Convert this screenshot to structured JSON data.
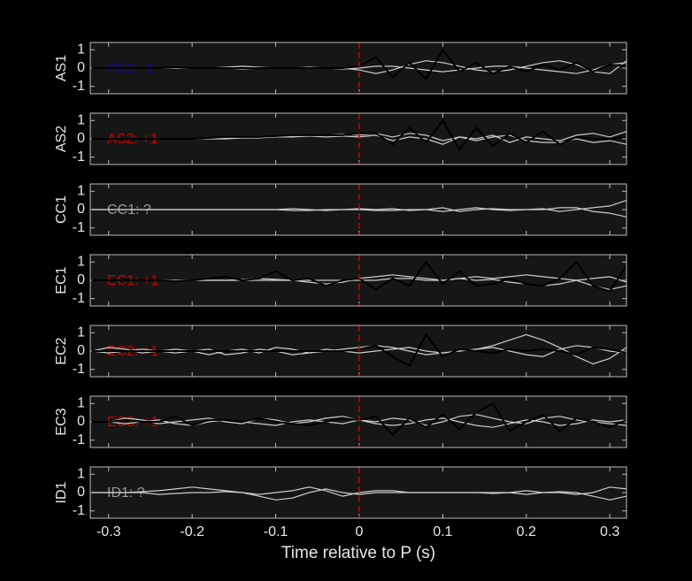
{
  "chart_data": [
    {
      "type": "line",
      "ylabel": "AS1",
      "annotation": {
        "text": "AS1: -1",
        "color": "#0a0a9a"
      },
      "vline": {
        "x": 0,
        "color": "#cc0000"
      },
      "xlim": [
        -0.322,
        0.32
      ],
      "ylim": [
        -1.4,
        1.4
      ],
      "yticks": [
        -1,
        0,
        1
      ],
      "x": [
        -0.32,
        -0.3,
        -0.28,
        -0.26,
        -0.24,
        -0.22,
        -0.2,
        -0.18,
        -0.16,
        -0.14,
        -0.12,
        -0.1,
        -0.08,
        -0.06,
        -0.04,
        -0.02,
        0,
        0.02,
        0.04,
        0.06,
        0.08,
        0.1,
        0.12,
        0.14,
        0.16,
        0.18,
        0.2,
        0.22,
        0.24,
        0.26,
        0.28,
        0.3,
        0.32
      ],
      "series": [
        {
          "color": "#cccccc",
          "values": [
            0,
            0,
            0,
            0,
            0,
            0,
            0,
            0,
            0.05,
            0.1,
            0.05,
            0,
            0,
            0,
            0,
            0,
            -0.1,
            -0.3,
            -0.1,
            0.2,
            0.4,
            0.3,
            0.1,
            -0.1,
            -0.2,
            -0.1,
            0.1,
            0.3,
            0.4,
            0.2,
            -0.2,
            -0.3,
            0.4
          ]
        },
        {
          "color": "#cccccc",
          "values": [
            0,
            0,
            0,
            0,
            0,
            0,
            0,
            0,
            0,
            -0.05,
            0,
            0,
            0,
            0.05,
            0,
            -0.05,
            0,
            0.1,
            0.1,
            0,
            -0.1,
            -0.2,
            -0.1,
            0,
            0.1,
            0.1,
            0,
            -0.1,
            -0.2,
            -0.3,
            -0.1,
            0.2,
            0.3
          ]
        },
        {
          "color": "#000000",
          "values": [
            0,
            0,
            0,
            0,
            0,
            0.05,
            0,
            0,
            0,
            0,
            0,
            0,
            0,
            0,
            0,
            0,
            0.1,
            0.6,
            -0.5,
            0.3,
            -0.6,
            1.0,
            -0.2,
            0.3,
            -0.3,
            0.1,
            -0.2,
            0.2,
            -0.1,
            0.3,
            -0.2,
            0.2,
            0.1
          ]
        }
      ]
    },
    {
      "type": "line",
      "ylabel": "AS2",
      "annotation": {
        "text": "AS2: +1",
        "color": "#cc0000"
      },
      "vline": {
        "x": 0,
        "color": "#cc0000"
      },
      "xlim": [
        -0.322,
        0.32
      ],
      "ylim": [
        -1.4,
        1.4
      ],
      "yticks": [
        -1,
        0,
        1
      ],
      "x": [
        -0.32,
        -0.3,
        -0.28,
        -0.26,
        -0.24,
        -0.22,
        -0.2,
        -0.18,
        -0.16,
        -0.14,
        -0.12,
        -0.1,
        -0.08,
        -0.06,
        -0.04,
        -0.02,
        0,
        0.02,
        0.04,
        0.06,
        0.08,
        0.1,
        0.12,
        0.14,
        0.16,
        0.18,
        0.2,
        0.22,
        0.24,
        0.26,
        0.28,
        0.3,
        0.32
      ],
      "series": [
        {
          "color": "#cccccc",
          "values": [
            0,
            0,
            0,
            0,
            0,
            0,
            0,
            0,
            0.05,
            0.1,
            0.1,
            0.1,
            0.15,
            0.2,
            0.2,
            0.25,
            0.2,
            0.3,
            0.1,
            0.3,
            0.2,
            -0.1,
            0.1,
            0,
            0.2,
            -0.2,
            0.1,
            0,
            -0.1,
            0.2,
            0.3,
            0.1,
            0.4
          ]
        },
        {
          "color": "#cccccc",
          "values": [
            0,
            0,
            0,
            0,
            0,
            0,
            0,
            0,
            0,
            0.05,
            0.05,
            0.1,
            0.1,
            0.15,
            0.1,
            0.15,
            0.1,
            0.2,
            -0.1,
            0.1,
            0,
            -0.3,
            0.1,
            -0.1,
            0.1,
            0.2,
            -0.1,
            -0.2,
            -0.2,
            0,
            -0.2,
            -0.1,
            -0.3
          ]
        },
        {
          "color": "#000000",
          "values": [
            0,
            0,
            0,
            0,
            0,
            0,
            0,
            0.05,
            0.1,
            0.1,
            0.1,
            0.15,
            0.2,
            0.2,
            0.2,
            0.2,
            0.3,
            0.3,
            -0.3,
            0.6,
            -0.2,
            1.0,
            -0.6,
            0.6,
            -0.4,
            0.3,
            -0.2,
            0.4,
            -0.3,
            0.1,
            0,
            0,
            0.1
          ]
        }
      ]
    },
    {
      "type": "line",
      "ylabel": "CC1",
      "annotation": {
        "text": "CC1: ?",
        "color": "#999999"
      },
      "vline": {
        "x": 0,
        "color": "#cc0000"
      },
      "xlim": [
        -0.322,
        0.32
      ],
      "ylim": [
        -1.4,
        1.4
      ],
      "yticks": [
        -1,
        0,
        1
      ],
      "x": [
        -0.32,
        -0.3,
        -0.28,
        -0.26,
        -0.24,
        -0.22,
        -0.2,
        -0.18,
        -0.16,
        -0.14,
        -0.12,
        -0.1,
        -0.08,
        -0.06,
        -0.04,
        -0.02,
        0,
        0.02,
        0.04,
        0.06,
        0.08,
        0.1,
        0.12,
        0.14,
        0.16,
        0.18,
        0.2,
        0.22,
        0.24,
        0.26,
        0.28,
        0.3,
        0.32
      ],
      "series": [
        {
          "color": "#cccccc",
          "values": [
            0,
            0,
            0,
            0,
            0,
            0,
            0,
            0,
            0,
            0,
            0,
            0,
            0.05,
            0,
            -0.05,
            0,
            0.05,
            0,
            0.05,
            -0.05,
            0,
            0.1,
            -0.1,
            0,
            0.05,
            0,
            0,
            0.05,
            -0.1,
            0,
            0.1,
            0.2,
            0.5
          ]
        },
        {
          "color": "#cccccc",
          "values": [
            0,
            0,
            0,
            0,
            0,
            0,
            0,
            0,
            0,
            0,
            0,
            0,
            -0.05,
            -0.05,
            0,
            0,
            0,
            -0.05,
            -0.05,
            0,
            0,
            -0.1,
            0,
            0.1,
            0,
            -0.05,
            0,
            0,
            0.1,
            0.1,
            -0.1,
            -0.2,
            -0.4
          ]
        }
      ]
    },
    {
      "type": "line",
      "ylabel": "EC1",
      "annotation": {
        "text": "EC1: +1",
        "color": "#cc0000"
      },
      "vline": {
        "x": 0,
        "color": "#cc0000"
      },
      "xlim": [
        -0.322,
        0.32
      ],
      "ylim": [
        -1.4,
        1.4
      ],
      "yticks": [
        -1,
        0,
        1
      ],
      "x": [
        -0.32,
        -0.3,
        -0.28,
        -0.26,
        -0.24,
        -0.22,
        -0.2,
        -0.18,
        -0.16,
        -0.14,
        -0.12,
        -0.1,
        -0.08,
        -0.06,
        -0.04,
        -0.02,
        0,
        0.02,
        0.04,
        0.06,
        0.08,
        0.1,
        0.12,
        0.14,
        0.16,
        0.18,
        0.2,
        0.22,
        0.24,
        0.26,
        0.28,
        0.3,
        0.32
      ],
      "series": [
        {
          "color": "#cccccc",
          "values": [
            0,
            0,
            0,
            0,
            0,
            0,
            0,
            0,
            0,
            0.05,
            0.1,
            0.05,
            0,
            -0.1,
            -0.2,
            -0.1,
            0.1,
            0.2,
            0.3,
            0.2,
            0.1,
            0,
            0.1,
            0.2,
            0.1,
            0.2,
            0.3,
            0.2,
            0.1,
            0,
            -0.3,
            -0.5,
            -0.3
          ]
        },
        {
          "color": "#cccccc",
          "values": [
            0,
            0,
            0,
            0,
            0,
            0,
            0,
            0,
            0,
            0,
            0,
            0,
            0,
            0,
            0,
            0,
            0,
            0,
            0.1,
            0.1,
            0,
            0,
            0.1,
            0,
            0.05,
            -0.1,
            -0.2,
            -0.3,
            -0.2,
            0,
            0.1,
            0.2,
            -0.1
          ]
        },
        {
          "color": "#000000",
          "values": [
            0,
            0,
            0,
            0,
            0,
            -0.05,
            0,
            0.1,
            0.2,
            0,
            0.1,
            0.5,
            0,
            0.1,
            -0.3,
            0,
            0.1,
            -0.5,
            0.1,
            -0.3,
            1.0,
            -0.2,
            0.5,
            -0.3,
            -0.2,
            0.1,
            -0.2,
            -0.3,
            0.1,
            1.0,
            -0.3,
            -0.6,
            0.8
          ]
        }
      ]
    },
    {
      "type": "line",
      "ylabel": "EC2",
      "annotation": {
        "text": "EC2: +1",
        "color": "#cc0000"
      },
      "vline": {
        "x": 0,
        "color": "#cc0000"
      },
      "xlim": [
        -0.322,
        0.32
      ],
      "ylim": [
        -1.4,
        1.4
      ],
      "yticks": [
        -1,
        0,
        1
      ],
      "x": [
        -0.32,
        -0.3,
        -0.28,
        -0.26,
        -0.24,
        -0.22,
        -0.2,
        -0.18,
        -0.16,
        -0.14,
        -0.12,
        -0.1,
        -0.08,
        -0.06,
        -0.04,
        -0.02,
        0,
        0.02,
        0.04,
        0.06,
        0.08,
        0.1,
        0.12,
        0.14,
        0.16,
        0.18,
        0.2,
        0.22,
        0.24,
        0.26,
        0.28,
        0.3,
        0.32
      ],
      "series": [
        {
          "color": "#cccccc",
          "values": [
            0,
            0.2,
            0.1,
            -0.1,
            0,
            0.1,
            0,
            -0.2,
            0,
            0.1,
            -0.1,
            0.2,
            0.1,
            -0.1,
            0,
            0.1,
            0.2,
            0.3,
            0.2,
            0,
            -0.2,
            -0.1,
            0,
            0.1,
            0.3,
            0.6,
            0.9,
            0.6,
            0.2,
            -0.3,
            -0.7,
            -0.4,
            0.2
          ]
        },
        {
          "color": "#cccccc",
          "values": [
            0,
            -0.1,
            0,
            0.1,
            0,
            -0.1,
            0,
            0.1,
            -0.2,
            -0.1,
            0.1,
            0,
            -0.2,
            -0.1,
            0.1,
            0,
            -0.1,
            0,
            0.1,
            0.2,
            0,
            -0.1,
            0,
            0.1,
            0.2,
            0,
            -0.2,
            -0.3,
            0.1,
            0.3,
            0.2,
            0,
            -0.1
          ]
        },
        {
          "color": "#000000",
          "values": [
            0,
            0,
            0,
            0,
            0,
            0,
            0,
            0,
            0,
            0,
            0,
            0,
            0,
            0,
            0,
            0,
            0.1,
            0.3,
            -0.3,
            -0.8,
            0.9,
            -0.3,
            0.1,
            0,
            -0.1,
            0.1,
            0,
            0.1,
            0,
            -0.2,
            0.2,
            0.1,
            -0.1
          ]
        }
      ]
    },
    {
      "type": "line",
      "ylabel": "EC3",
      "annotation": {
        "text": "EC3: +1",
        "color": "#cc0000"
      },
      "vline": {
        "x": 0,
        "color": "#cc0000"
      },
      "xlim": [
        -0.322,
        0.32
      ],
      "ylim": [
        -1.4,
        1.4
      ],
      "yticks": [
        -1,
        0,
        1
      ],
      "x": [
        -0.32,
        -0.3,
        -0.28,
        -0.26,
        -0.24,
        -0.22,
        -0.2,
        -0.18,
        -0.16,
        -0.14,
        -0.12,
        -0.1,
        -0.08,
        -0.06,
        -0.04,
        -0.02,
        0,
        0.02,
        0.04,
        0.06,
        0.08,
        0.1,
        0.12,
        0.14,
        0.16,
        0.18,
        0.2,
        0.22,
        0.24,
        0.26,
        0.28,
        0.3,
        0.32
      ],
      "series": [
        {
          "color": "#cccccc",
          "values": [
            0,
            0,
            0.2,
            0.1,
            -0.1,
            0,
            0.1,
            0.2,
            0,
            -0.1,
            0.2,
            0.1,
            -0.1,
            0,
            0.2,
            0.3,
            0.1,
            0,
            0.2,
            0.1,
            -0.2,
            0,
            0.3,
            0.4,
            0.2,
            0,
            -0.1,
            0.2,
            0.3,
            0.1,
            0,
            -0.1,
            -0.2
          ]
        },
        {
          "color": "#cccccc",
          "values": [
            0,
            0,
            -0.1,
            0,
            0.1,
            -0.1,
            -0.2,
            0,
            0.1,
            0,
            -0.1,
            -0.2,
            0,
            0.1,
            0,
            -0.1,
            0.1,
            -0.1,
            -0.2,
            -0.1,
            0.1,
            0.2,
            0,
            -0.2,
            -0.3,
            -0.1,
            0.1,
            0,
            -0.2,
            -0.1,
            0.1,
            0,
            0.1
          ]
        },
        {
          "color": "#000000",
          "values": [
            0,
            0,
            0.1,
            0,
            0,
            0.3,
            -0.2,
            0.1,
            0.1,
            0,
            0.2,
            0,
            -0.1,
            -0.2,
            0,
            0.2,
            0.1,
            0.3,
            -0.7,
            0.2,
            -0.3,
            0.4,
            -0.4,
            0.5,
            1.0,
            -0.5,
            0,
            0.4,
            -0.5,
            0.2,
            0,
            -0.3,
            0.1
          ]
        }
      ]
    },
    {
      "type": "line",
      "ylabel": "ID1",
      "annotation": {
        "text": "ID1: ?",
        "color": "#999999"
      },
      "vline": {
        "x": 0,
        "color": "#cc0000"
      },
      "xlim": [
        -0.322,
        0.32
      ],
      "ylim": [
        -1.4,
        1.4
      ],
      "yticks": [
        -1,
        0,
        1
      ],
      "xticks": [
        -0.3,
        -0.2,
        -0.1,
        0,
        0.1,
        0.2,
        0.3
      ],
      "xlabel": "Time relative to P (s)",
      "x": [
        -0.32,
        -0.3,
        -0.28,
        -0.26,
        -0.24,
        -0.22,
        -0.2,
        -0.18,
        -0.16,
        -0.14,
        -0.12,
        -0.1,
        -0.08,
        -0.06,
        -0.04,
        -0.02,
        0,
        0.02,
        0.04,
        0.06,
        0.08,
        0.1,
        0.12,
        0.14,
        0.16,
        0.18,
        0.2,
        0.22,
        0.24,
        0.26,
        0.28,
        0.3,
        0.32
      ],
      "series": [
        {
          "color": "#cccccc",
          "values": [
            0,
            0,
            0,
            0.05,
            0.1,
            0.2,
            0.3,
            0.2,
            0.1,
            0,
            -0.1,
            0,
            0.1,
            0.3,
            0.1,
            -0.2,
            0,
            0.1,
            0.1,
            0,
            0,
            0,
            0,
            0,
            0,
            0,
            0.1,
            0,
            0,
            -0.1,
            0,
            0.3,
            0.2
          ]
        },
        {
          "color": "#cccccc",
          "values": [
            0,
            0,
            0,
            0,
            -0.1,
            -0.05,
            0,
            0,
            0.05,
            0,
            -0.2,
            -0.4,
            -0.3,
            0,
            0.2,
            0,
            -0.1,
            0,
            0,
            0,
            0,
            0,
            0,
            0,
            -0.05,
            0,
            -0.1,
            0,
            0.05,
            0,
            -0.2,
            -0.4,
            -0.2
          ]
        }
      ]
    }
  ]
}
